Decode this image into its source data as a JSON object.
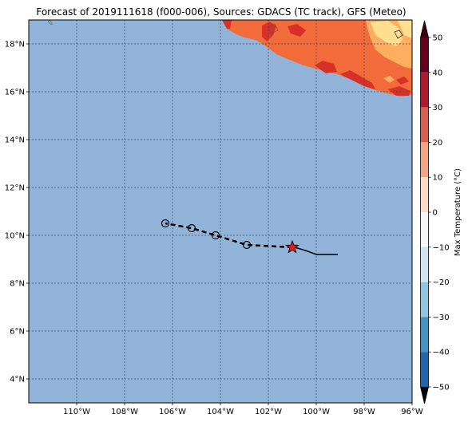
{
  "title": "Forecast of 2019111618 (f000-006), Sources: GDACS (TC track), GFS (Meteo)",
  "map": {
    "lon_range": [
      -112,
      -96
    ],
    "lat_range": [
      3,
      19
    ],
    "x_ticks": [
      {
        "lon": -110,
        "label": "110°W"
      },
      {
        "lon": -108,
        "label": "108°W"
      },
      {
        "lon": -106,
        "label": "106°W"
      },
      {
        "lon": -104,
        "label": "104°W"
      },
      {
        "lon": -102,
        "label": "102°W"
      },
      {
        "lon": -100,
        "label": "100°W"
      },
      {
        "lon": -98,
        "label": "98°W"
      },
      {
        "lon": -96,
        "label": "96°W"
      }
    ],
    "y_ticks": [
      {
        "lat": 4,
        "label": "4°N"
      },
      {
        "lat": 6,
        "label": "6°N"
      },
      {
        "lat": 8,
        "label": "8°N"
      },
      {
        "lat": 10,
        "label": "10°N"
      },
      {
        "lat": 12,
        "label": "12°N"
      },
      {
        "lat": 14,
        "label": "14°N"
      },
      {
        "lat": 16,
        "label": "16°N"
      },
      {
        "lat": 18,
        "label": "18°N"
      }
    ],
    "grid": true,
    "ocean_color": "#92b4d8"
  },
  "track": {
    "observed": [
      {
        "lon": -99.1,
        "lat": 9.2
      },
      {
        "lon": -100.0,
        "lat": 9.2
      },
      {
        "lon": -100.4,
        "lat": 9.35
      },
      {
        "lon": -100.9,
        "lat": 9.5
      }
    ],
    "current": {
      "lon": -101.0,
      "lat": 9.5
    },
    "forecast": [
      {
        "lon": -101.0,
        "lat": 9.5
      },
      {
        "lon": -102.9,
        "lat": 9.6
      },
      {
        "lon": -104.2,
        "lat": 10.0
      },
      {
        "lon": -105.2,
        "lat": 10.3
      },
      {
        "lon": -106.3,
        "lat": 10.5
      }
    ]
  },
  "colorbar": {
    "label": "Max Temperature (°C)",
    "ticks": [
      50,
      40,
      30,
      20,
      10,
      0,
      -10,
      -20,
      -30,
      -40,
      -50
    ],
    "colors_top_to_bottom": [
      "#67001f",
      "#b2182b",
      "#d6604d",
      "#f4a582",
      "#fddbc7",
      "#f7f7f7",
      "#d1e5f0",
      "#92c5de",
      "#4393c3",
      "#2166ac",
      "#053061"
    ],
    "segment_colors": [
      "#8c0726",
      "#b71c2c",
      "#d73027",
      "#ef6548",
      "#fdae61",
      "#fee090",
      "#fff5d6",
      "#ffffff",
      "#e8f4f8",
      "#c6e2ef",
      "#92c5de",
      "#6aa9d0",
      "#4393c3",
      "#2c6eae",
      "#1b4c96",
      "#1b2f75"
    ]
  },
  "land": {
    "base_color": "#f26b3a",
    "warm_color": "#d73027",
    "cool_color": "#fdae61",
    "cooler_color": "#fee090"
  }
}
